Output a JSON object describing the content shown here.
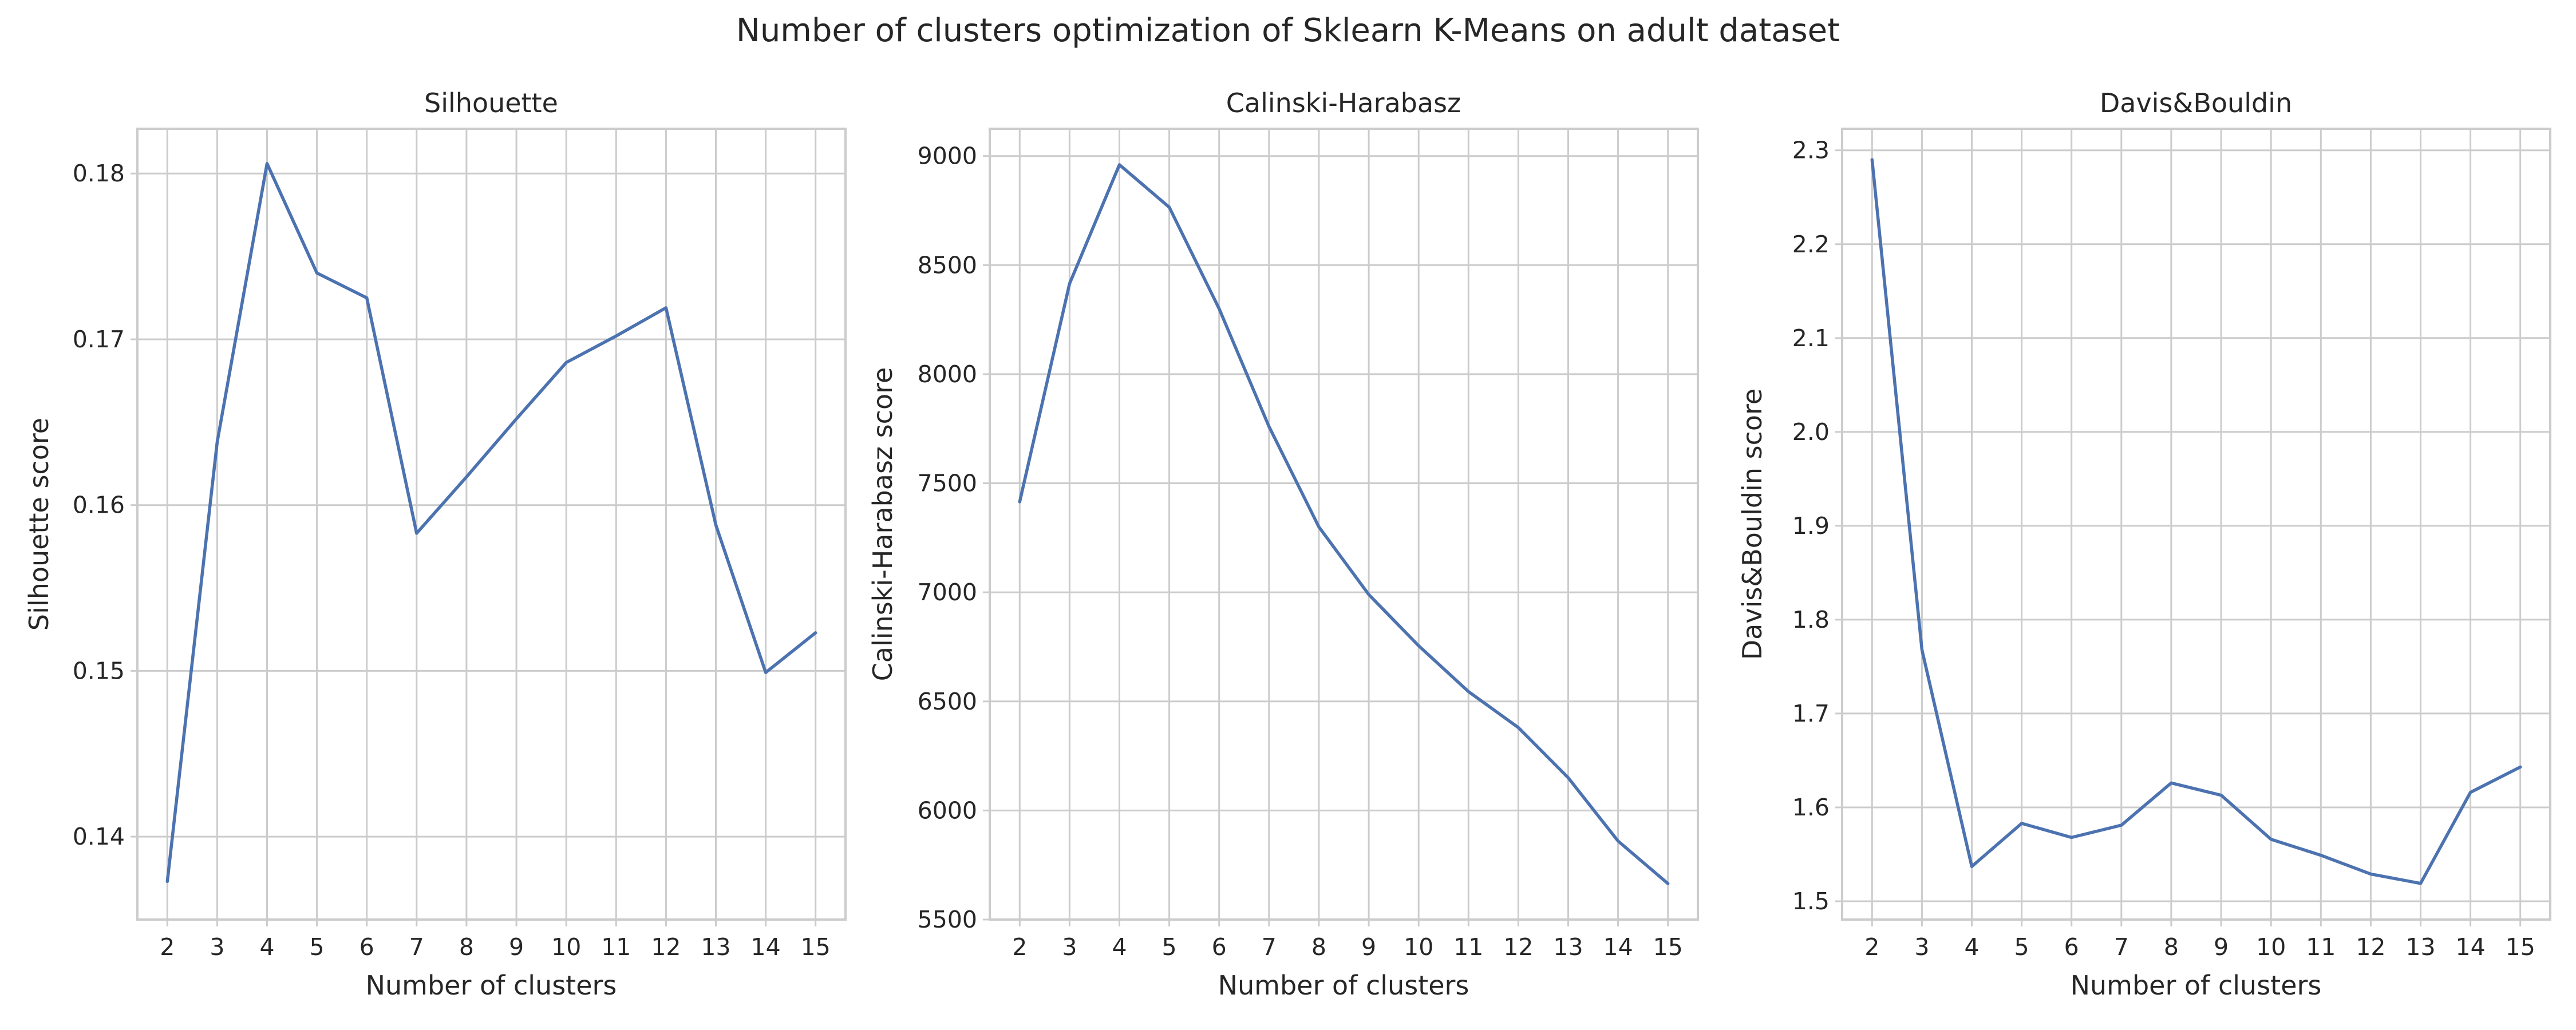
{
  "figure": {
    "suptitle": "Number of clusters optimization of Sklearn K-Means on adult dataset"
  },
  "colors": {
    "series": "#4c72b0",
    "grid": "#cccccc",
    "text": "#262626"
  },
  "chart_data": [
    {
      "type": "line",
      "title": "Silhouette",
      "xlabel": "Number of clusters",
      "ylabel": "Silhouette score",
      "x": [
        2,
        3,
        4,
        5,
        6,
        7,
        8,
        9,
        10,
        11,
        12,
        13,
        14,
        15
      ],
      "xticks": [
        "2",
        "3",
        "4",
        "5",
        "6",
        "7",
        "8",
        "9",
        "10",
        "11",
        "12",
        "13",
        "14",
        "15"
      ],
      "series": [
        {
          "values": [
            0.1373,
            0.1638,
            0.1806,
            0.174,
            0.1725,
            0.1583,
            0.1617,
            0.1652,
            0.1686,
            0.1702,
            0.1719,
            0.1588,
            0.1499,
            0.1523
          ]
        }
      ],
      "ylim": [
        0.135,
        0.1827
      ],
      "yticks": [
        0.14,
        0.15,
        0.16,
        0.17,
        0.18
      ],
      "ytick_labels": [
        "0.14",
        "0.15",
        "0.16",
        "0.17",
        "0.18"
      ],
      "grid": true
    },
    {
      "type": "line",
      "title": "Calinski-Harabasz",
      "xlabel": "Number of clusters",
      "ylabel": "Calinski-Harabasz score",
      "x": [
        2,
        3,
        4,
        5,
        6,
        7,
        8,
        9,
        10,
        11,
        12,
        13,
        14,
        15
      ],
      "xticks": [
        "2",
        "3",
        "4",
        "5",
        "6",
        "7",
        "8",
        "9",
        "10",
        "11",
        "12",
        "13",
        "14",
        "15"
      ],
      "series": [
        {
          "values": [
            7415,
            8415,
            8960,
            8765,
            8300,
            7760,
            7300,
            6990,
            6755,
            6545,
            6380,
            6150,
            5860,
            5665
          ]
        }
      ],
      "ylim": [
        5500,
        9125
      ],
      "yticks": [
        5500,
        6000,
        6500,
        7000,
        7500,
        8000,
        8500,
        9000
      ],
      "ytick_labels": [
        "5500",
        "6000",
        "6500",
        "7000",
        "7500",
        "8000",
        "8500",
        "9000"
      ],
      "grid": true
    },
    {
      "type": "line",
      "title": "Davis&Bouldin",
      "xlabel": "Number of clusters",
      "ylabel": "Davis&Bouldin score",
      "x": [
        2,
        3,
        4,
        5,
        6,
        7,
        8,
        9,
        10,
        11,
        12,
        13,
        14,
        15
      ],
      "xticks": [
        "2",
        "3",
        "4",
        "5",
        "6",
        "7",
        "8",
        "9",
        "10",
        "11",
        "12",
        "13",
        "14",
        "15"
      ],
      "series": [
        {
          "values": [
            2.29,
            1.768,
            1.537,
            1.583,
            1.568,
            1.581,
            1.626,
            1.613,
            1.566,
            1.549,
            1.529,
            1.519,
            1.616,
            1.643
          ]
        }
      ],
      "ylim": [
        1.4805,
        2.323
      ],
      "yticks": [
        1.5,
        1.6,
        1.7,
        1.8,
        1.9,
        2.0,
        2.1,
        2.2,
        2.3
      ],
      "ytick_labels": [
        "1.5",
        "1.6",
        "1.7",
        "1.8",
        "1.9",
        "2.0",
        "2.1",
        "2.2",
        "2.3"
      ],
      "grid": true
    }
  ]
}
